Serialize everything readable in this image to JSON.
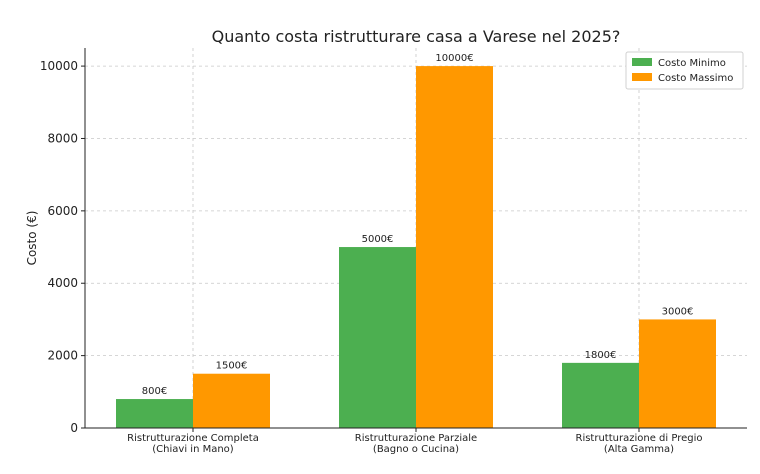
{
  "chart_data": {
    "type": "bar",
    "title": "Quanto costa ristrutturare casa a Varese nel 2025?",
    "xlabel": "",
    "ylabel": "Costo (€)",
    "ylim": [
      0,
      10500
    ],
    "yticks": [
      0,
      2000,
      4000,
      6000,
      8000,
      10000
    ],
    "grid": true,
    "legend_position": "top-right",
    "categories": [
      [
        "Ristrutturazione Completa",
        "(Chiavi in Mano)"
      ],
      [
        "Ristrutturazione Parziale",
        "(Bagno o Cucina)"
      ],
      [
        "Ristrutturazione di Pregio",
        "(Alta Gamma)"
      ]
    ],
    "series": [
      {
        "name": "Costo Minimo",
        "color": "#4caf50",
        "values": [
          800,
          5000,
          1800
        ],
        "labels": [
          "800€",
          "5000€",
          "1800€"
        ]
      },
      {
        "name": "Costo Massimo",
        "color": "#ff9800",
        "values": [
          1500,
          10000,
          3000
        ],
        "labels": [
          "1500€",
          "10000€",
          "3000€"
        ]
      }
    ]
  }
}
